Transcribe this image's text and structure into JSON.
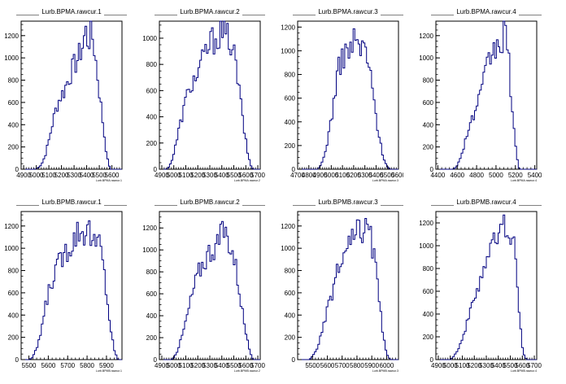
{
  "colors": {
    "hist": "#000080",
    "axis": "#000000",
    "background": "#ffffff"
  },
  "chart_data": [
    {
      "type": "histogram",
      "title": "Lurb.BPMA.rawcur.1",
      "xtitle": "Lurb.BPMA.rawcur.1",
      "xlim": [
        4880,
        5680
      ],
      "ylim": [
        0,
        1330
      ],
      "x_ticks": [
        4900,
        5000,
        5100,
        5200,
        5300,
        5400,
        5500,
        5600
      ],
      "y_ticks": [
        0,
        200,
        400,
        600,
        800,
        1000,
        1200
      ],
      "profile": [
        [
          4990,
          0
        ],
        [
          5010,
          10
        ],
        [
          5040,
          40
        ],
        [
          5070,
          120
        ],
        [
          5100,
          260
        ],
        [
          5130,
          420
        ],
        [
          5160,
          560
        ],
        [
          5190,
          650
        ],
        [
          5220,
          700
        ],
        [
          5250,
          800
        ],
        [
          5280,
          880
        ],
        [
          5310,
          950
        ],
        [
          5340,
          1020
        ],
        [
          5370,
          1120
        ],
        [
          5390,
          1250
        ],
        [
          5410,
          1150
        ],
        [
          5430,
          1200
        ],
        [
          5450,
          1180
        ],
        [
          5470,
          1000
        ],
        [
          5490,
          800
        ],
        [
          5510,
          600
        ],
        [
          5530,
          400
        ],
        [
          5550,
          200
        ],
        [
          5570,
          60
        ],
        [
          5590,
          0
        ]
      ]
    },
    {
      "type": "histogram",
      "title": "Lurb.BPMA.rawcur.2",
      "xtitle": "Lurb.BPMA.rawcur.2",
      "xlim": [
        4880,
        5720
      ],
      "ylim": [
        0,
        1130
      ],
      "x_ticks": [
        4900,
        5000,
        5100,
        5200,
        5300,
        5400,
        5500,
        5600,
        5700
      ],
      "y_ticks": [
        0,
        200,
        400,
        600,
        800,
        1000
      ],
      "profile": [
        [
          4940,
          0
        ],
        [
          4960,
          20
        ],
        [
          4990,
          80
        ],
        [
          5020,
          200
        ],
        [
          5050,
          330
        ],
        [
          5080,
          450
        ],
        [
          5110,
          560
        ],
        [
          5140,
          640
        ],
        [
          5170,
          680
        ],
        [
          5200,
          730
        ],
        [
          5230,
          800
        ],
        [
          5260,
          880
        ],
        [
          5290,
          940
        ],
        [
          5320,
          980
        ],
        [
          5350,
          1010
        ],
        [
          5380,
          1030
        ],
        [
          5410,
          1060
        ],
        [
          5430,
          1000
        ],
        [
          5460,
          1010
        ],
        [
          5490,
          920
        ],
        [
          5520,
          780
        ],
        [
          5550,
          560
        ],
        [
          5580,
          340
        ],
        [
          5610,
          150
        ],
        [
          5640,
          30
        ],
        [
          5660,
          0
        ]
      ]
    },
    {
      "type": "histogram",
      "title": "Lurb.BPMA.rawcur.3",
      "xtitle": "Lurb.BPMA.rawcur.3",
      "xlim": [
        4700,
        5600
      ],
      "ylim": [
        0,
        1250
      ],
      "x_ticks": [
        4700,
        4800,
        4900,
        5000,
        5100,
        5200,
        5300,
        5400,
        5500,
        5600
      ],
      "y_ticks": [
        0,
        200,
        400,
        600,
        800,
        1000,
        1200
      ],
      "profile": [
        [
          4880,
          0
        ],
        [
          4910,
          40
        ],
        [
          4940,
          120
        ],
        [
          4970,
          260
        ],
        [
          5000,
          430
        ],
        [
          5030,
          620
        ],
        [
          5060,
          820
        ],
        [
          5090,
          920
        ],
        [
          5120,
          980
        ],
        [
          5150,
          1020
        ],
        [
          5180,
          1000
        ],
        [
          5210,
          1110
        ],
        [
          5240,
          1050
        ],
        [
          5270,
          1000
        ],
        [
          5300,
          1040
        ],
        [
          5330,
          900
        ],
        [
          5360,
          720
        ],
        [
          5390,
          520
        ],
        [
          5420,
          320
        ],
        [
          5450,
          160
        ],
        [
          5480,
          60
        ],
        [
          5510,
          10
        ],
        [
          5530,
          0
        ]
      ]
    },
    {
      "type": "histogram",
      "title": "Lurb.BPMA.rawcur.4",
      "xtitle": "Lurb.BPMA.rawcur.4",
      "xlim": [
        4380,
        5420
      ],
      "ylim": [
        0,
        1330
      ],
      "x_ticks": [
        4400,
        4600,
        4800,
        5000,
        5200,
        5400
      ],
      "y_ticks": [
        0,
        200,
        400,
        600,
        800,
        1000,
        1200
      ],
      "profile": [
        [
          4560,
          0
        ],
        [
          4600,
          30
        ],
        [
          4640,
          120
        ],
        [
          4680,
          250
        ],
        [
          4720,
          370
        ],
        [
          4760,
          460
        ],
        [
          4800,
          550
        ],
        [
          4840,
          660
        ],
        [
          4880,
          800
        ],
        [
          4920,
          960
        ],
        [
          4960,
          1040
        ],
        [
          5000,
          1080
        ],
        [
          5040,
          1150
        ],
        [
          5060,
          1100
        ],
        [
          5080,
          1200
        ],
        [
          5100,
          1240
        ],
        [
          5120,
          1100
        ],
        [
          5140,
          880
        ],
        [
          5160,
          620
        ],
        [
          5180,
          400
        ],
        [
          5200,
          220
        ],
        [
          5220,
          80
        ],
        [
          5240,
          0
        ]
      ]
    },
    {
      "type": "histogram",
      "title": "Lurb.BPMB.rawcur.1",
      "xtitle": "Lurb.BPMB.rawcur.1",
      "xlim": [
        5460,
        5980
      ],
      "ylim": [
        0,
        1330
      ],
      "x_ticks": [
        5500,
        5600,
        5700,
        5800,
        5900
      ],
      "y_ticks": [
        0,
        200,
        400,
        600,
        800,
        1000,
        1200
      ],
      "profile": [
        [
          5500,
          0
        ],
        [
          5520,
          20
        ],
        [
          5540,
          100
        ],
        [
          5560,
          230
        ],
        [
          5580,
          420
        ],
        [
          5600,
          600
        ],
        [
          5620,
          720
        ],
        [
          5640,
          800
        ],
        [
          5660,
          880
        ],
        [
          5680,
          960
        ],
        [
          5700,
          1000
        ],
        [
          5720,
          1060
        ],
        [
          5740,
          1120
        ],
        [
          5760,
          1180
        ],
        [
          5780,
          1150
        ],
        [
          5800,
          1200
        ],
        [
          5820,
          1120
        ],
        [
          5840,
          1000
        ],
        [
          5860,
          1080
        ],
        [
          5880,
          900
        ],
        [
          5900,
          600
        ],
        [
          5920,
          300
        ],
        [
          5940,
          80
        ],
        [
          5960,
          0
        ]
      ]
    },
    {
      "type": "histogram",
      "title": "Lurb.BPMB.rawcur.2",
      "xtitle": "Lurb.BPMB.rawcur.2",
      "xlim": [
        4880,
        5720
      ],
      "ylim": [
        0,
        1350
      ],
      "x_ticks": [
        4900,
        5000,
        5100,
        5200,
        5300,
        5400,
        5500,
        5600,
        5700
      ],
      "y_ticks": [
        0,
        200,
        400,
        600,
        800,
        1000,
        1200
      ],
      "profile": [
        [
          4980,
          0
        ],
        [
          5000,
          20
        ],
        [
          5030,
          80
        ],
        [
          5060,
          180
        ],
        [
          5090,
          300
        ],
        [
          5120,
          440
        ],
        [
          5150,
          580
        ],
        [
          5180,
          700
        ],
        [
          5210,
          800
        ],
        [
          5240,
          870
        ],
        [
          5270,
          930
        ],
        [
          5300,
          990
        ],
        [
          5330,
          1020
        ],
        [
          5360,
          1050
        ],
        [
          5390,
          1100
        ],
        [
          5410,
          1200
        ],
        [
          5430,
          1150
        ],
        [
          5460,
          1080
        ],
        [
          5490,
          980
        ],
        [
          5520,
          820
        ],
        [
          5550,
          600
        ],
        [
          5580,
          380
        ],
        [
          5610,
          180
        ],
        [
          5640,
          60
        ],
        [
          5660,
          0
        ]
      ]
    },
    {
      "type": "histogram",
      "title": "Lurb.BPMB.rawcur.3",
      "xtitle": "Lurb.BPMB.rawcur.3",
      "xlim": [
        5400,
        6080
      ],
      "ylim": [
        0,
        1330
      ],
      "x_ticks": [
        5500,
        5600,
        5700,
        5800,
        5900,
        6000
      ],
      "y_ticks": [
        0,
        200,
        400,
        600,
        800,
        1000,
        1200
      ],
      "profile": [
        [
          5480,
          0
        ],
        [
          5500,
          30
        ],
        [
          5530,
          100
        ],
        [
          5560,
          220
        ],
        [
          5590,
          380
        ],
        [
          5620,
          540
        ],
        [
          5650,
          700
        ],
        [
          5680,
          820
        ],
        [
          5710,
          920
        ],
        [
          5740,
          1000
        ],
        [
          5770,
          1060
        ],
        [
          5800,
          1120
        ],
        [
          5830,
          1180
        ],
        [
          5850,
          1150
        ],
        [
          5870,
          1180
        ],
        [
          5890,
          1100
        ],
        [
          5910,
          980
        ],
        [
          5930,
          780
        ],
        [
          5950,
          520
        ],
        [
          5970,
          280
        ],
        [
          5990,
          100
        ],
        [
          6010,
          20
        ],
        [
          6030,
          0
        ]
      ]
    },
    {
      "type": "histogram",
      "title": "Lurb.BPMB.rawcur.4",
      "xtitle": "Lurb.BPMB.rawcur.4",
      "xlim": [
        4880,
        5720
      ],
      "ylim": [
        0,
        1300
      ],
      "x_ticks": [
        4900,
        5000,
        5100,
        5200,
        5300,
        5400,
        5500,
        5600,
        5700
      ],
      "y_ticks": [
        0,
        200,
        400,
        600,
        800,
        1000,
        1200
      ],
      "profile": [
        [
          5000,
          0
        ],
        [
          5020,
          20
        ],
        [
          5050,
          60
        ],
        [
          5080,
          130
        ],
        [
          5110,
          220
        ],
        [
          5140,
          320
        ],
        [
          5170,
          420
        ],
        [
          5200,
          540
        ],
        [
          5230,
          650
        ],
        [
          5260,
          750
        ],
        [
          5290,
          850
        ],
        [
          5320,
          940
        ],
        [
          5350,
          1000
        ],
        [
          5380,
          1050
        ],
        [
          5410,
          1100
        ],
        [
          5440,
          1160
        ],
        [
          5470,
          1180
        ],
        [
          5500,
          1150
        ],
        [
          5520,
          1100
        ],
        [
          5540,
          900
        ],
        [
          5560,
          620
        ],
        [
          5580,
          320
        ],
        [
          5600,
          120
        ],
        [
          5620,
          20
        ],
        [
          5640,
          0
        ]
      ]
    }
  ]
}
